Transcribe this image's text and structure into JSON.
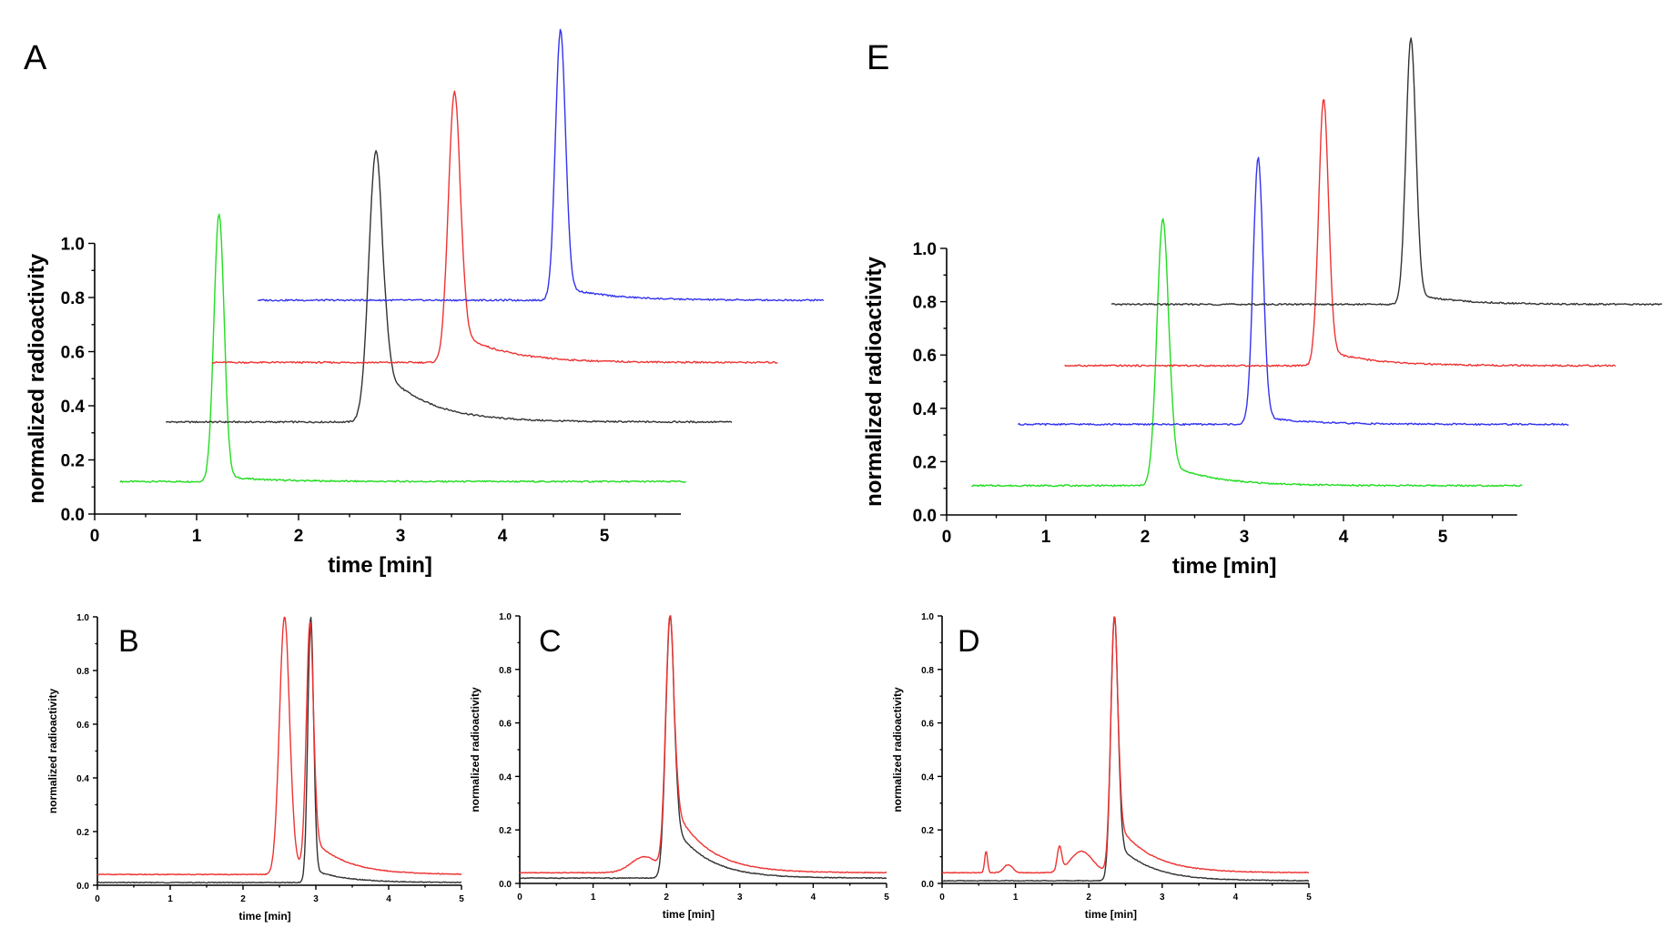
{
  "chart_data": [
    {
      "panel": "A",
      "type": "line",
      "layout": "stacked-offset",
      "xlabel": "time [min]",
      "ylabel": "normalized radioactivity",
      "xlim": [
        0,
        6
      ],
      "ylim": [
        0,
        1.0
      ],
      "xticks": [
        "0",
        "1",
        "2",
        "3",
        "4",
        "5"
      ],
      "yticks": [
        "0.0",
        "0.2",
        "0.4",
        "0.6",
        "0.8",
        "1.0"
      ],
      "series": [
        {
          "color": "#22dd22",
          "x_start": 0.25,
          "x_end": 5.8,
          "dx": 0,
          "baseline": 0.12,
          "peak_x": 1.22,
          "peak_y": 1.11,
          "tail": 0.02,
          "width": 0.05
        },
        {
          "color": "#333333",
          "x_start": 0.7,
          "x_end": 6.25,
          "dx": 0.45,
          "baseline": 0.34,
          "peak_x": 2.76,
          "peak_y": 1.34,
          "tail": 0.22,
          "width": 0.07
        },
        {
          "color": "#ee3333",
          "x_start": 1.15,
          "x_end": 6.7,
          "dx": 0.9,
          "baseline": 0.56,
          "peak_x": 3.53,
          "peak_y": 1.56,
          "tail": 0.12,
          "width": 0.06
        },
        {
          "color": "#3333ee",
          "x_start": 1.6,
          "x_end": 7.15,
          "dx": 1.35,
          "baseline": 0.79,
          "peak_x": 4.57,
          "peak_y": 1.79,
          "tail": 0.05,
          "width": 0.05
        }
      ]
    },
    {
      "panel": "E",
      "type": "line",
      "layout": "stacked-offset",
      "xlabel": "time [min]",
      "ylabel": "normalized radioactivity",
      "xlim": [
        0,
        6
      ],
      "ylim": [
        0,
        1.0
      ],
      "xticks": [
        "0",
        "1",
        "2",
        "3",
        "4",
        "5"
      ],
      "yticks": [
        "0.0",
        "0.2",
        "0.4",
        "0.6",
        "0.8",
        "1.0"
      ],
      "series": [
        {
          "color": "#22dd22",
          "x_start": 0.25,
          "x_end": 5.8,
          "dx": 0,
          "baseline": 0.11,
          "peak_x": 2.18,
          "peak_y": 1.11,
          "tail": 0.09,
          "width": 0.06
        },
        {
          "color": "#3333ee",
          "x_start": 0.72,
          "x_end": 6.27,
          "dx": 0.47,
          "baseline": 0.34,
          "peak_x": 3.14,
          "peak_y": 1.34,
          "tail": 0.03,
          "width": 0.05
        },
        {
          "color": "#ee3333",
          "x_start": 1.19,
          "x_end": 6.74,
          "dx": 0.94,
          "baseline": 0.56,
          "peak_x": 3.8,
          "peak_y": 1.56,
          "tail": 0.06,
          "width": 0.05
        },
        {
          "color": "#333333",
          "x_start": 1.66,
          "x_end": 7.21,
          "dx": 1.41,
          "baseline": 0.79,
          "peak_x": 4.68,
          "peak_y": 1.79,
          "tail": 0.04,
          "width": 0.05
        }
      ]
    },
    {
      "panel": "B",
      "type": "line",
      "xlabel": "time [min]",
      "ylabel": "normalized radioactivity",
      "xlim": [
        0,
        5
      ],
      "ylim": [
        0,
        1.0
      ],
      "xticks": [
        "0",
        "1",
        "2",
        "3",
        "4",
        "5"
      ],
      "yticks": [
        "0.0",
        "0.2",
        "0.4",
        "0.6",
        "0.8",
        "1.0"
      ],
      "series": [
        {
          "color": "#333333",
          "baseline": 0.01,
          "peaks": [
            {
              "x": 2.93,
              "y": 1.0,
              "width": 0.04,
              "tail": 0.05
            }
          ]
        },
        {
          "color": "#ee3333",
          "baseline": 0.04,
          "peaks": [
            {
              "x": 2.57,
              "y": 1.0,
              "width": 0.07,
              "tail": 0.05
            },
            {
              "x": 2.92,
              "y": 0.96,
              "width": 0.05,
              "tail": 0.12
            }
          ]
        }
      ]
    },
    {
      "panel": "C",
      "type": "line",
      "xlabel": "time [min]",
      "ylabel": "normalized radioactivity",
      "xlim": [
        0,
        5
      ],
      "ylim": [
        0,
        1.0
      ],
      "xticks": [
        "0",
        "1",
        "2",
        "3",
        "4",
        "5"
      ],
      "yticks": [
        "0.0",
        "0.2",
        "0.4",
        "0.6",
        "0.8",
        "1.0"
      ],
      "series": [
        {
          "color": "#333333",
          "baseline": 0.02,
          "peaks": [
            {
              "x": 2.05,
              "y": 1.0,
              "width": 0.06,
              "tail": 0.22
            }
          ]
        },
        {
          "color": "#ee3333",
          "baseline": 0.04,
          "peaks": [
            {
              "x": 2.05,
              "y": 1.0,
              "width": 0.06,
              "tail": 0.28
            },
            {
              "x": 1.7,
              "y": 0.1,
              "width": 0.18,
              "tail": 0.0
            }
          ]
        }
      ]
    },
    {
      "panel": "D",
      "type": "line",
      "xlabel": "time [min]",
      "ylabel": "normalized radioactivity",
      "xlim": [
        0,
        5
      ],
      "ylim": [
        0,
        1.0
      ],
      "xticks": [
        "0",
        "1",
        "2",
        "3",
        "4",
        "5"
      ],
      "yticks": [
        "0.0",
        "0.2",
        "0.4",
        "0.6",
        "0.8",
        "1.0"
      ],
      "series": [
        {
          "color": "#333333",
          "baseline": 0.01,
          "peaks": [
            {
              "x": 2.35,
              "y": 1.0,
              "width": 0.05,
              "tail": 0.15
            }
          ]
        },
        {
          "color": "#ee3333",
          "baseline": 0.04,
          "peaks": [
            {
              "x": 2.35,
              "y": 1.0,
              "width": 0.05,
              "tail": 0.2
            },
            {
              "x": 0.6,
              "y": 0.12,
              "width": 0.02,
              "tail": 0.0
            },
            {
              "x": 0.9,
              "y": 0.07,
              "width": 0.06,
              "tail": 0.0
            },
            {
              "x": 1.6,
              "y": 0.13,
              "width": 0.03,
              "tail": 0.0
            },
            {
              "x": 1.9,
              "y": 0.12,
              "width": 0.15,
              "tail": 0.0
            }
          ]
        }
      ]
    }
  ]
}
